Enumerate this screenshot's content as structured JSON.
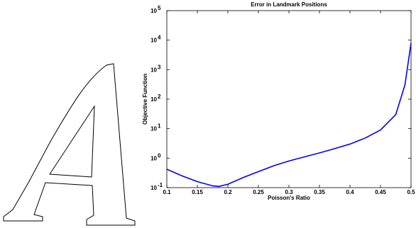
{
  "chart_data": {
    "type": "line",
    "title": "Error in Landmark Positions",
    "x_label": "Poisson's Ratio",
    "y_label": "Objective Function",
    "log_y": true,
    "xlim": [
      0.1,
      0.5
    ],
    "xticks": [
      0.1,
      0.15,
      0.2,
      0.25,
      0.3,
      0.35,
      0.4,
      0.45,
      0.5
    ],
    "ylim": [
      0.1,
      100000
    ],
    "yticks": [
      {
        "value": 0.1,
        "label": "10",
        "exponent": "-1"
      },
      {
        "value": 1,
        "label": "10",
        "exponent": "0"
      },
      {
        "value": 10,
        "label": "10",
        "exponent": "1"
      },
      {
        "value": 100,
        "label": "10",
        "exponent": "2"
      },
      {
        "value": 1000,
        "label": "10",
        "exponent": "3"
      },
      {
        "value": 10000,
        "label": "10",
        "exponent": "4"
      },
      {
        "value": 100000,
        "label": "10",
        "exponent": "5"
      }
    ],
    "series": [
      {
        "color": "#0000ff",
        "x": [
          0.1,
          0.125,
          0.15,
          0.175,
          0.185,
          0.2,
          0.225,
          0.25,
          0.275,
          0.3,
          0.325,
          0.35,
          0.375,
          0.4,
          0.425,
          0.45,
          0.475,
          0.49,
          0.5
        ],
        "values": [
          0.42,
          0.25,
          0.16,
          0.115,
          0.11,
          0.13,
          0.22,
          0.35,
          0.55,
          0.8,
          1.1,
          1.5,
          2.1,
          3,
          4.8,
          9,
          30,
          300,
          8000
        ]
      }
    ]
  }
}
